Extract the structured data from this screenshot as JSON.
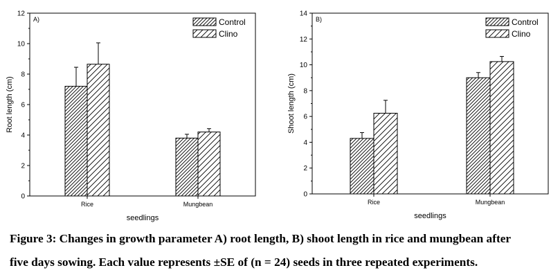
{
  "chart_data": [
    {
      "type": "bar",
      "panel_label": "A)",
      "categories": [
        "Rice",
        "Mungbean"
      ],
      "series": [
        {
          "name": "Control",
          "values": [
            7.2,
            3.8
          ],
          "errors": [
            1.25,
            0.25
          ]
        },
        {
          "name": "Clino",
          "values": [
            8.65,
            4.2
          ],
          "errors": [
            1.4,
            0.22
          ]
        }
      ],
      "xlabel": "seedlings",
      "ylabel": "Root length (cm)",
      "ylim": [
        0,
        12
      ],
      "yticks": [
        0,
        2,
        4,
        6,
        8,
        10,
        12
      ],
      "legend": "top-right",
      "grid": false
    },
    {
      "type": "bar",
      "panel_label": "B)",
      "categories": [
        "Rice",
        "Mungbean"
      ],
      "series": [
        {
          "name": "Control",
          "values": [
            4.3,
            9.0
          ],
          "errors": [
            0.45,
            0.4
          ]
        },
        {
          "name": "Clino",
          "values": [
            6.25,
            10.25
          ],
          "errors": [
            1.0,
            0.4
          ]
        }
      ],
      "xlabel": "seedlings",
      "ylabel": "Shoot length (cm)",
      "ylim": [
        0,
        14
      ],
      "yticks": [
        0,
        2,
        4,
        6,
        8,
        10,
        12,
        14
      ],
      "legend": "top-right",
      "grid": false
    }
  ],
  "caption": {
    "line1": "Figure 3: Changes in growth parameter A) root length, B) shoot length in rice and mungbean after",
    "line2": "five days sowing. Each value represents ±SE of (n = 24) seeds in three repeated experiments."
  }
}
